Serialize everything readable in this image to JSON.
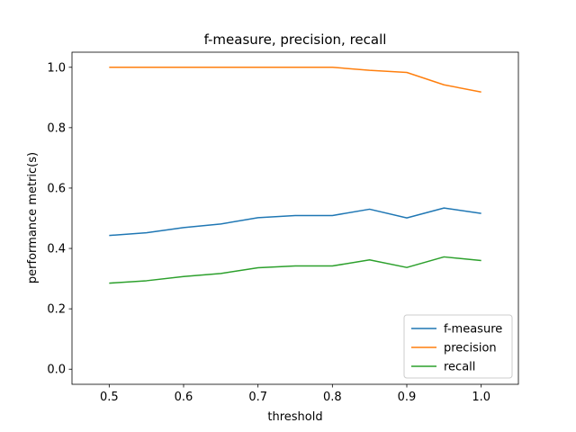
{
  "chart_data": {
    "type": "line",
    "title": "f-measure, precision, recall",
    "xlabel": "threshold",
    "ylabel": "performance metric(s)",
    "x": [
      0.5,
      0.55,
      0.6,
      0.65,
      0.7,
      0.75,
      0.8,
      0.85,
      0.9,
      0.95,
      1.0
    ],
    "xlim": [
      0.45,
      1.05
    ],
    "ylim": [
      -0.05,
      1.05
    ],
    "xticks": [
      0.5,
      0.6,
      0.7,
      0.8,
      0.9,
      1.0
    ],
    "xtick_labels": [
      "0.5",
      "0.6",
      "0.7",
      "0.8",
      "0.9",
      "1.0"
    ],
    "yticks": [
      0.0,
      0.2,
      0.4,
      0.6,
      0.8,
      1.0
    ],
    "ytick_labels": [
      "0.0",
      "0.2",
      "0.4",
      "0.6",
      "0.8",
      "1.0"
    ],
    "grid": false,
    "legend": "lower-right",
    "series": [
      {
        "name": "f-measure",
        "color": "#1f77b4",
        "values": [
          0.443,
          0.452,
          0.469,
          0.481,
          0.502,
          0.509,
          0.509,
          0.53,
          0.501,
          0.534,
          0.516
        ]
      },
      {
        "name": "precision",
        "color": "#ff7f0e",
        "values": [
          1.0,
          1.0,
          1.0,
          1.0,
          1.0,
          1.0,
          1.0,
          0.99,
          0.983,
          0.942,
          0.918
        ]
      },
      {
        "name": "recall",
        "color": "#2ca02c",
        "values": [
          0.285,
          0.293,
          0.307,
          0.317,
          0.336,
          0.342,
          0.342,
          0.362,
          0.337,
          0.372,
          0.36
        ]
      }
    ]
  }
}
